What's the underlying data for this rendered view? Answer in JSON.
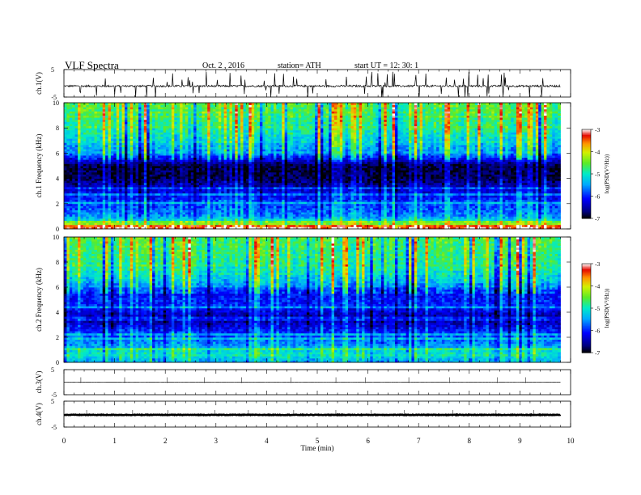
{
  "header": {
    "title": "VLF  Spectra",
    "date": "Oct. 2  , 2016",
    "station": "station= ATH",
    "start": "start  UT =    12: 30: 1"
  },
  "chart_data": [
    {
      "type": "line",
      "name": "ch1",
      "ylabel": "ch.1(V)",
      "ylim": [
        -5,
        5
      ],
      "y_ticks": [
        "5",
        "-5"
      ],
      "xlim": [
        0,
        10
      ],
      "trace": {
        "baseline": -1.0,
        "noise": 0.35,
        "spike_rate": 0.06,
        "color": "#000000"
      }
    },
    {
      "type": "heatmap",
      "name": "ch1-spectrogram",
      "ylabel": "ch.1  Frequency  (kHz)",
      "ylim": [
        0,
        10
      ],
      "y_ticks": [
        "0",
        "2",
        "4",
        "6",
        "8",
        "10"
      ],
      "xlim": [
        0,
        10
      ],
      "data_end_min": 9.8,
      "colorbar": {
        "label": "log(PSD(V²/Hz))",
        "range": [
          -7,
          -3
        ],
        "ticks": [
          "-3",
          "-4",
          "-5",
          "-6",
          "-7"
        ]
      },
      "profile": [
        {
          "f": 0.2,
          "v": -3.2
        },
        {
          "f": 0.5,
          "v": -4.8
        },
        {
          "f": 1.0,
          "v": -5.6
        },
        {
          "f": 1.6,
          "v": -5.8
        },
        {
          "f": 2.5,
          "v": -6.1
        },
        {
          "f": 3.0,
          "v": -6.3
        },
        {
          "f": 4.0,
          "v": -6.8
        },
        {
          "f": 5.0,
          "v": -6.9
        },
        {
          "f": 6.0,
          "v": -5.6
        },
        {
          "f": 8.0,
          "v": -4.9
        },
        {
          "f": 10.0,
          "v": -4.6
        }
      ]
    },
    {
      "type": "heatmap",
      "name": "ch2-spectrogram",
      "ylabel": "ch.2  Frequency  (kHz)",
      "ylim": [
        0,
        10
      ],
      "y_ticks": [
        "0",
        "2",
        "4",
        "6",
        "8",
        "10"
      ],
      "xlim": [
        0,
        10
      ],
      "data_end_min": 9.8,
      "colorbar": {
        "label": "log(PSD(V²/Hz))",
        "range": [
          -7,
          -3
        ],
        "ticks": [
          "-3",
          "-4",
          "-5",
          "-6",
          "-7"
        ]
      },
      "profile": [
        {
          "f": 0.2,
          "v": -5.4
        },
        {
          "f": 0.6,
          "v": -5.0
        },
        {
          "f": 1.0,
          "v": -5.2
        },
        {
          "f": 1.5,
          "v": -5.6
        },
        {
          "f": 2.5,
          "v": -6.0
        },
        {
          "f": 3.5,
          "v": -6.6
        },
        {
          "f": 4.5,
          "v": -6.0
        },
        {
          "f": 5.5,
          "v": -6.1
        },
        {
          "f": 6.5,
          "v": -5.3
        },
        {
          "f": 8.0,
          "v": -4.8
        },
        {
          "f": 10.0,
          "v": -4.6
        }
      ]
    },
    {
      "type": "line",
      "name": "ch3",
      "ylabel": "ch.3(V)",
      "ylim": [
        -5,
        5
      ],
      "y_ticks": [
        "5",
        "-5"
      ],
      "xlim": [
        0,
        10
      ],
      "trace": {
        "baseline": 0.0,
        "noise": 0.02,
        "spike_rate": 0.0,
        "color": "#000000"
      }
    },
    {
      "type": "line",
      "name": "ch4",
      "ylabel": "ch.4(V)",
      "ylim": [
        -5,
        5
      ],
      "y_ticks": [
        "5",
        "-5"
      ],
      "xlim": [
        0,
        10
      ],
      "trace": {
        "baseline": -0.3,
        "noise": 0.12,
        "spike_rate": 0.0,
        "color": "#000000"
      }
    }
  ],
  "x_axis": {
    "label": "Time  (min)",
    "ticks": [
      "0",
      "1",
      "2",
      "3",
      "4",
      "5",
      "6",
      "7",
      "8",
      "9",
      "10"
    ]
  }
}
